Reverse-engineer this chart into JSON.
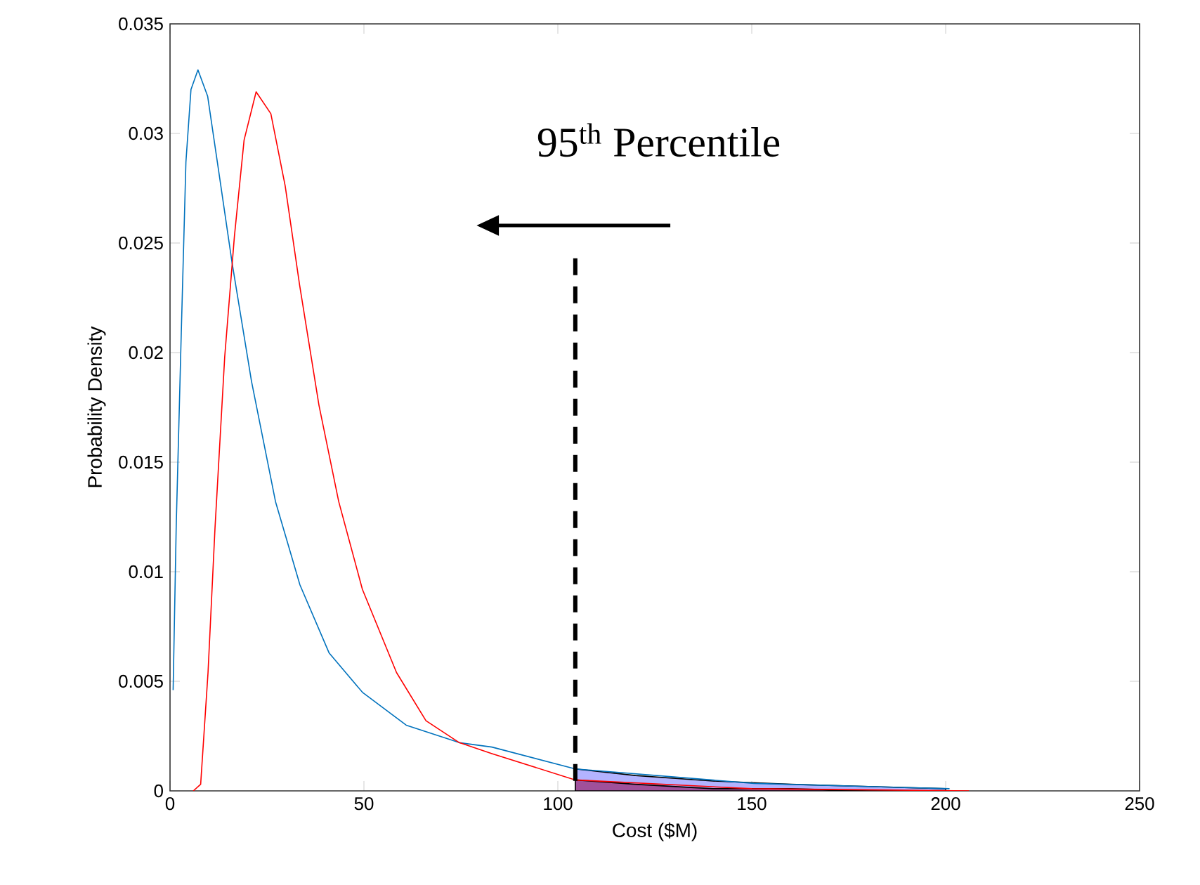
{
  "chart_data": {
    "type": "line",
    "xlabel": "Cost ($M)",
    "ylabel": "Probability Density",
    "xlim": [
      0,
      250
    ],
    "xticks": [
      0,
      50,
      100,
      150,
      200,
      250
    ],
    "ylim": [
      0,
      0.035
    ],
    "yticks": [
      0,
      0.005,
      0.01,
      0.015,
      0.02,
      0.025,
      0.03,
      0.035
    ],
    "annotations": [
      "95$^{th}$ Percentile"
    ],
    "series": [
      {
        "type": "area",
        "color": "#b3b3ff",
        "x": [
          104.5,
          120,
          140,
          160,
          180,
          200
        ],
        "values": [
          0.001,
          0.0007,
          0.00045,
          0.0003,
          0.0002,
          0.0001
        ]
      },
      {
        "type": "area",
        "color": "#a0509a",
        "x": [
          104.5,
          120,
          140,
          160,
          180,
          200
        ],
        "values": [
          0.0005,
          0.0003,
          0.0001,
          0.0001,
          0,
          0
        ]
      },
      {
        "color": "#0072bd",
        "x": [
          0.8,
          1.6,
          2.9,
          4.1,
          5.4,
          7.2,
          9.7,
          12.2,
          16,
          21,
          27.2,
          33.5,
          41,
          49.6,
          60.9,
          74.6,
          83,
          104.5,
          150.6,
          201
        ],
        "values": [
          0.0046,
          0.0121,
          0.0209,
          0.0287,
          0.032,
          0.0329,
          0.0317,
          0.0287,
          0.0241,
          0.0187,
          0.0132,
          0.0094,
          0.0063,
          0.0045,
          0.003,
          0.0022,
          0.002,
          0.001,
          0.00034,
          0.0001
        ]
      },
      {
        "color": "#ff0000",
        "x": [
          6,
          7.9,
          9.8,
          11.6,
          14.1,
          16.6,
          19.1,
          22.2,
          26,
          29.7,
          33.4,
          38.4,
          43.5,
          49.6,
          58.4,
          66,
          74.6,
          83,
          104.5,
          150,
          206
        ],
        "values": [
          0,
          0.0003,
          0.0054,
          0.012,
          0.0198,
          0.0253,
          0.0297,
          0.0319,
          0.0309,
          0.0276,
          0.0231,
          0.0176,
          0.0132,
          0.0092,
          0.0054,
          0.0032,
          0.0022,
          0.0017,
          0.0005,
          0.0001,
          0
        ]
      },
      {
        "color": "#000000",
        "line_style": "dashed",
        "x": [
          104.5,
          104.5
        ],
        "values": [
          0.0243,
          0
        ]
      }
    ]
  }
}
